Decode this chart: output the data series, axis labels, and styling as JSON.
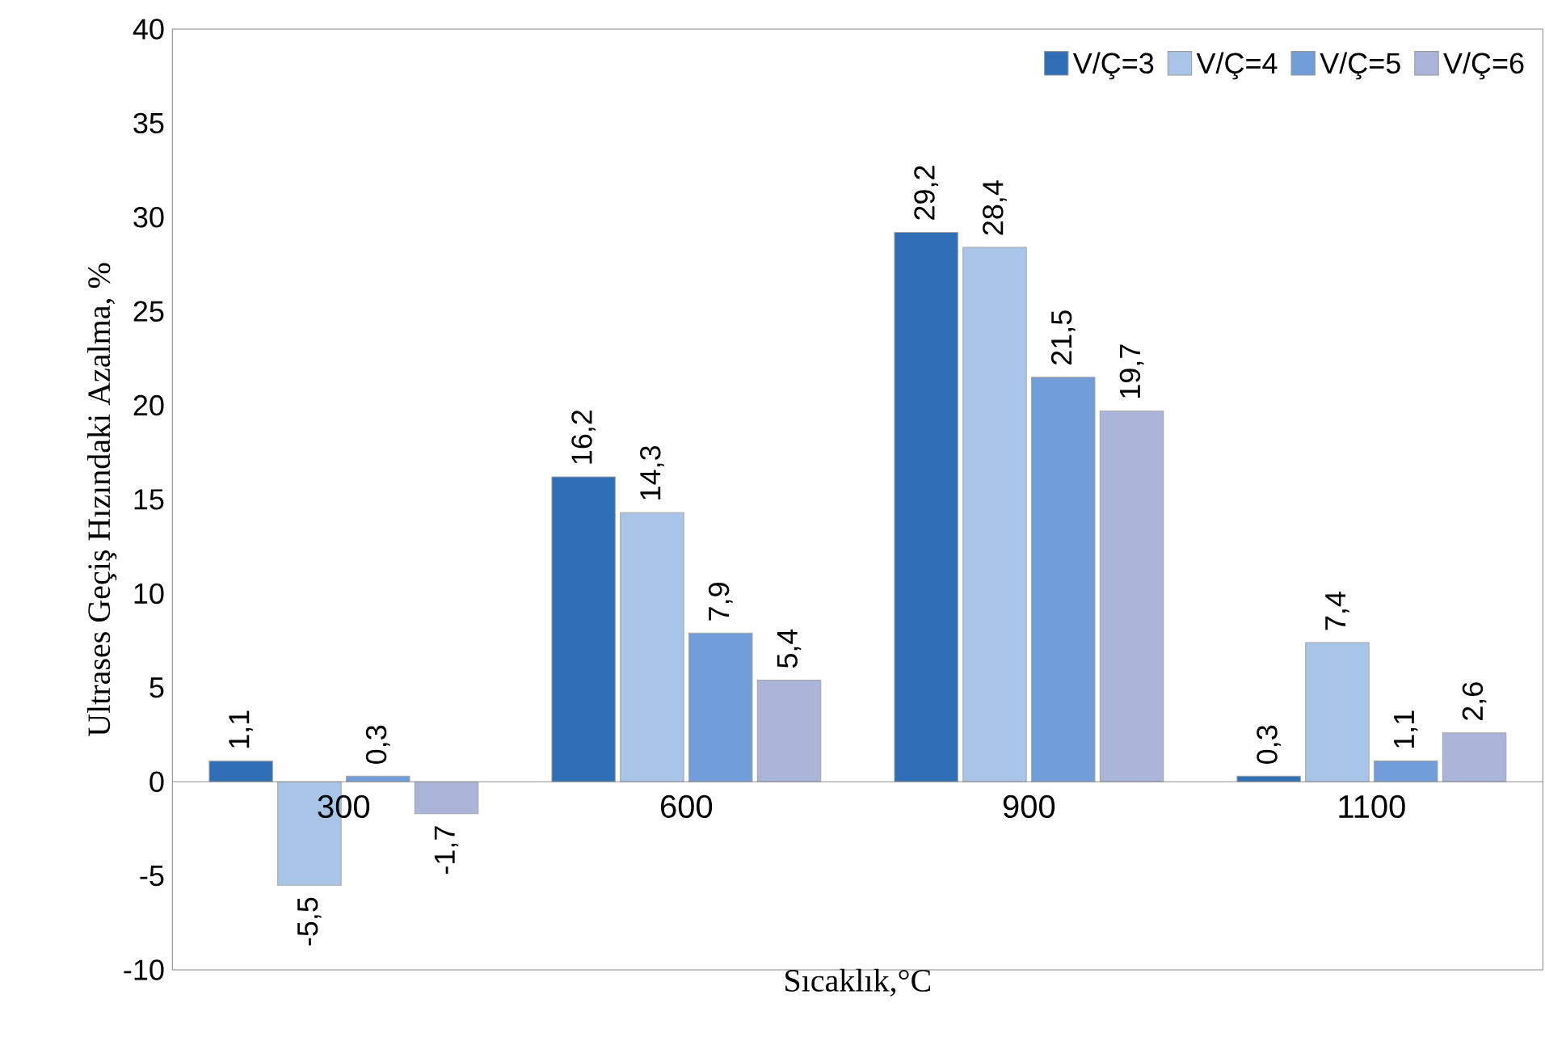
{
  "chart_data": {
    "type": "bar",
    "xlabel": "Sıcaklık,°C",
    "ylabel": "Ultrases Geçiş Hızındaki Azalma, %",
    "categories": [
      "300",
      "600",
      "900",
      "1100"
    ],
    "series": [
      {
        "name": "V/Ç=3",
        "color": "#2f6db5",
        "values": [
          1.1,
          16.2,
          29.2,
          0.3
        ],
        "value_labels": [
          "1,1",
          "16,2",
          "29,2",
          "0,3"
        ]
      },
      {
        "name": "V/Ç=4",
        "color": "#a8c5e8",
        "values": [
          -5.5,
          14.3,
          28.4,
          7.4
        ],
        "value_labels": [
          "-5,5",
          "14,3",
          "28,4",
          "7,4"
        ]
      },
      {
        "name": "V/Ç=5",
        "color": "#709dd8",
        "values": [
          0.3,
          7.9,
          21.5,
          1.1
        ],
        "value_labels": [
          "0,3",
          "7,9",
          "21,5",
          "1,1"
        ]
      },
      {
        "name": "V/Ç=6",
        "color": "#abb4d9",
        "values": [
          -1.7,
          5.4,
          19.7,
          2.6
        ],
        "value_labels": [
          "-1,7",
          "5,4",
          "19,7",
          "2,6"
        ]
      }
    ],
    "ylim": [
      -10,
      40
    ],
    "yticks": [
      -10,
      -5,
      0,
      5,
      10,
      15,
      20,
      25,
      30,
      35,
      40
    ],
    "grid": false,
    "legend": "top right"
  }
}
